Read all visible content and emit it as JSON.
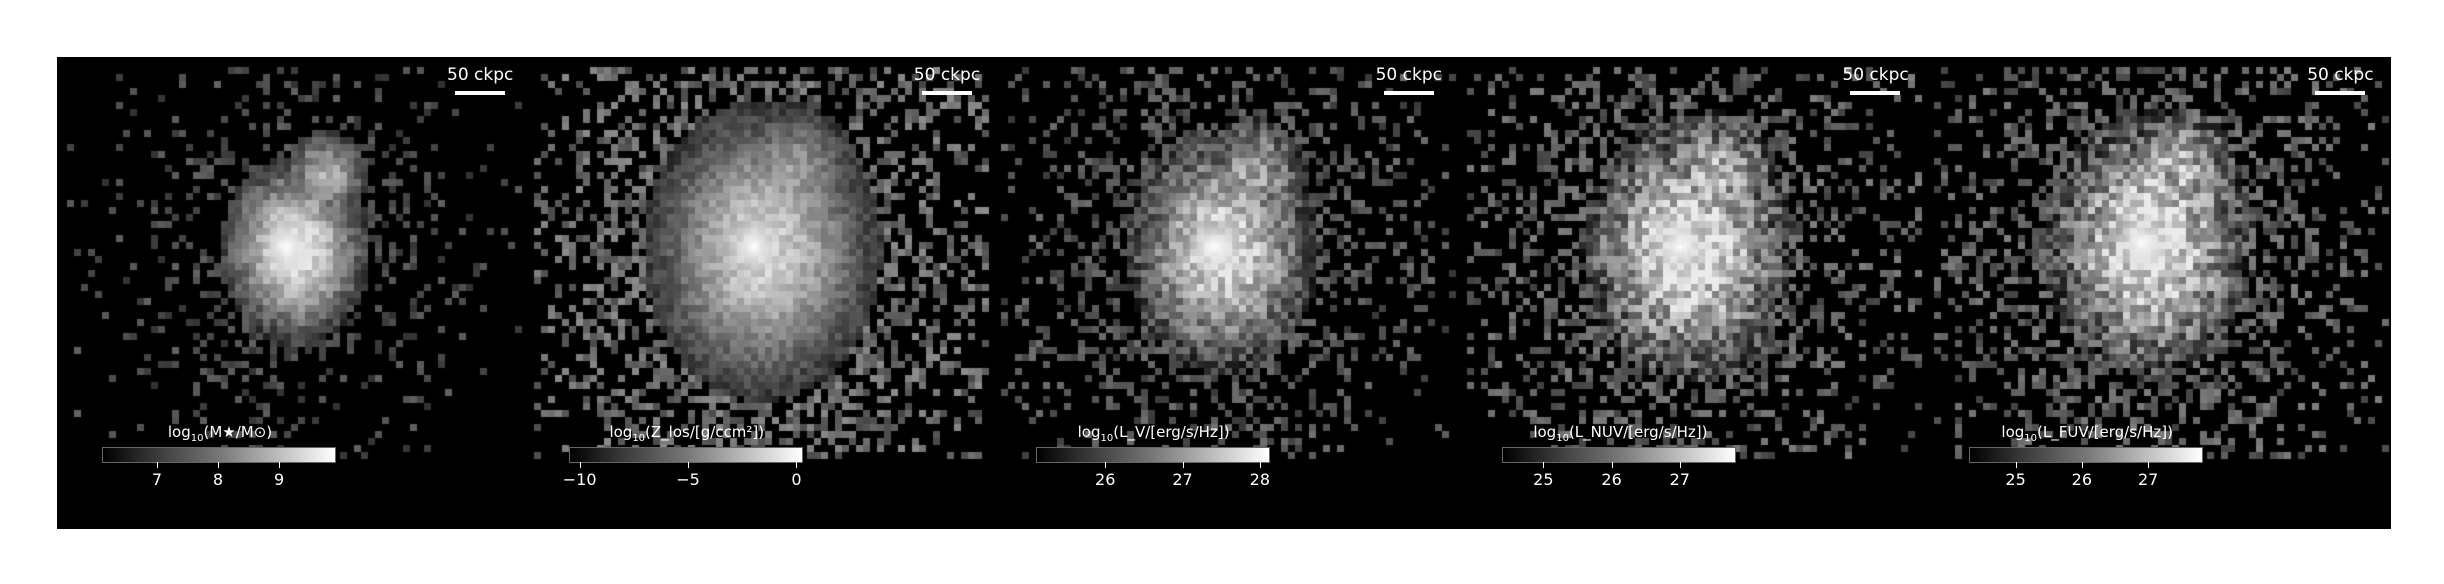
{
  "figure": {
    "panels": [
      {
        "id": "stellar-mass",
        "scale_label": "50 ckpc",
        "colorbar": {
          "title_pre": "log",
          "title_sub": "10",
          "title_rest": "(M★/M⊙)",
          "ticks": [
            "7",
            "8",
            "9"
          ],
          "range": [
            6.1,
            9.9
          ],
          "tick_values": [
            7,
            8,
            9
          ]
        }
      },
      {
        "id": "metals",
        "scale_label": "50 ckpc",
        "colorbar": {
          "title_pre": "log",
          "title_sub": "10",
          "title_rest": "(Z_los/[g/ccm²])",
          "ticks": [
            "−10",
            "−5",
            "0"
          ],
          "range": [
            -10.5,
            0.2
          ],
          "tick_values": [
            -10,
            -5,
            0
          ]
        }
      },
      {
        "id": "v-band",
        "scale_label": "50 ckpc",
        "colorbar": {
          "title_pre": "log",
          "title_sub": "10",
          "title_rest": "(L_V/[erg/s/Hz])",
          "ticks": [
            "26",
            "27",
            "28"
          ],
          "range": [
            25.1,
            28.1
          ],
          "tick_values": [
            26,
            27,
            28
          ]
        }
      },
      {
        "id": "nuv",
        "scale_label": "50 ckpc",
        "colorbar": {
          "title_pre": "log",
          "title_sub": "10",
          "title_rest": "(L_NUV/[erg/s/Hz])",
          "ticks": [
            "25",
            "26",
            "27"
          ],
          "range": [
            24.4,
            27.8
          ],
          "tick_values": [
            25,
            26,
            27
          ]
        }
      },
      {
        "id": "fuv",
        "scale_label": "50 ckpc",
        "colorbar": {
          "title_pre": "log",
          "title_sub": "10",
          "title_rest": "(L_FUV/[erg/s/Hz])",
          "ticks": [
            "25",
            "26",
            "27"
          ],
          "range": [
            24.3,
            27.8
          ],
          "tick_values": [
            25,
            26,
            27
          ]
        }
      }
    ]
  }
}
